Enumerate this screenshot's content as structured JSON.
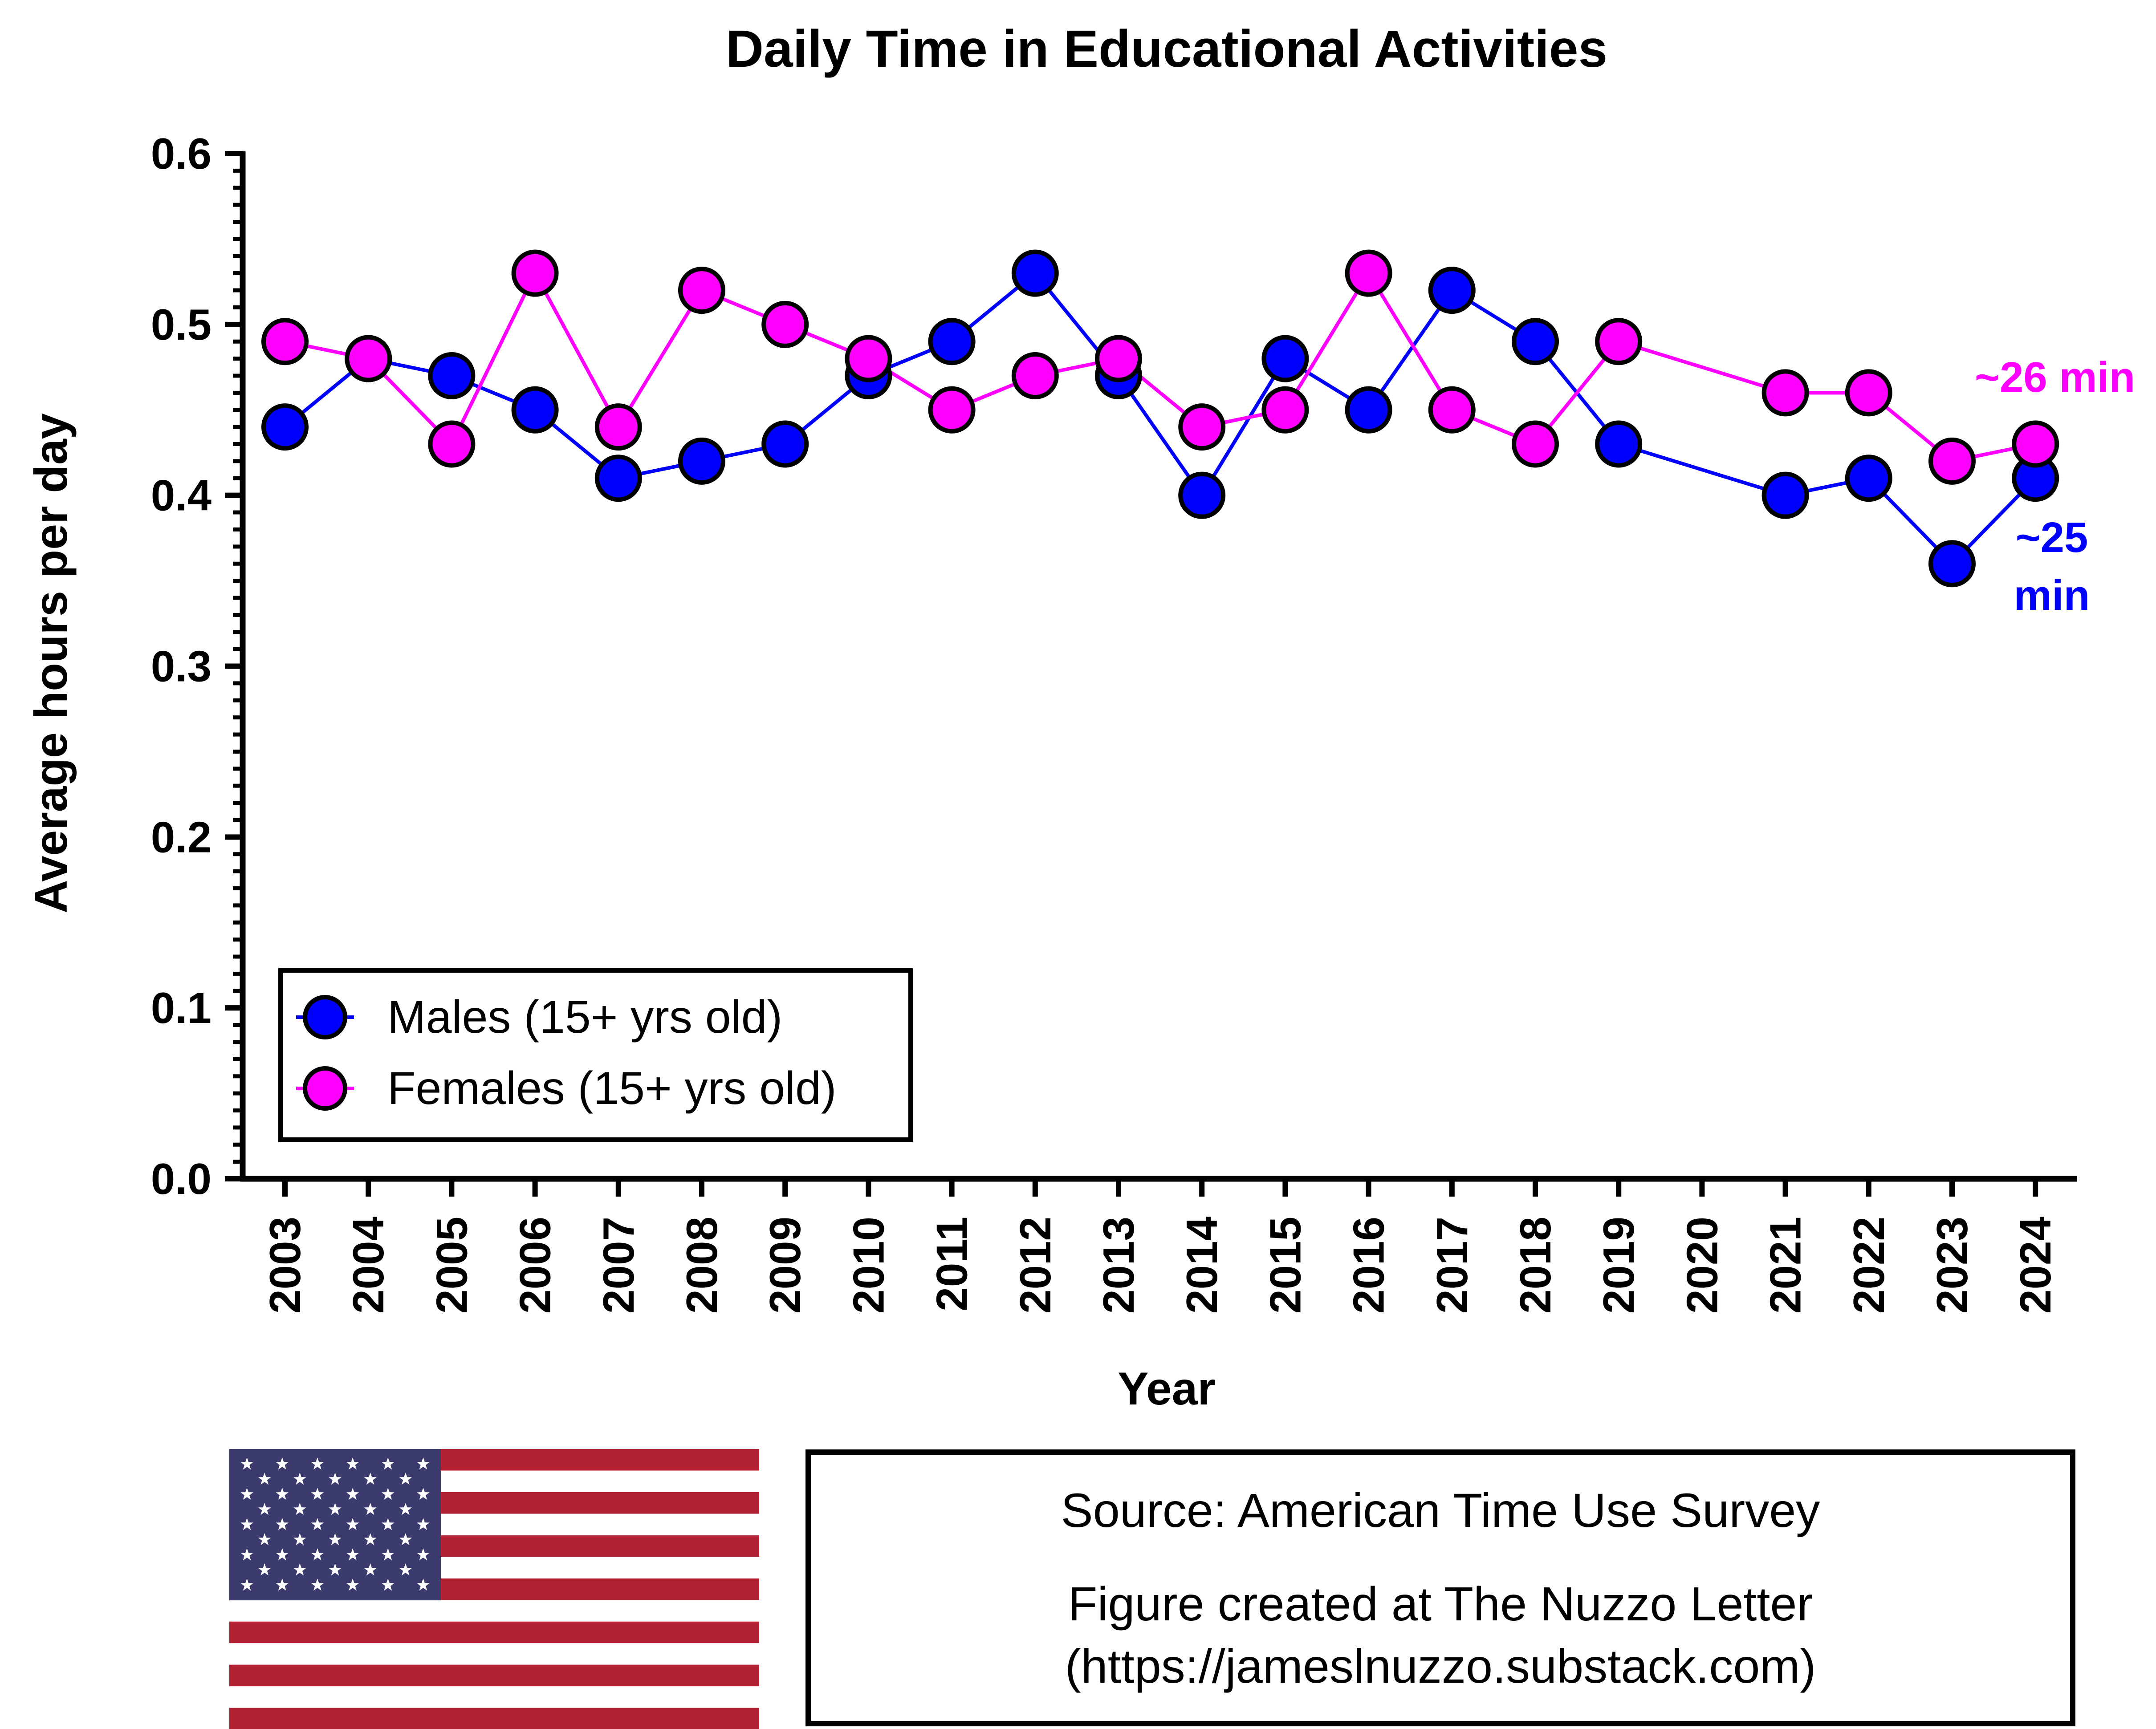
{
  "chart_data": {
    "type": "line",
    "title": "Daily Time in Educational Activities",
    "xlabel": "Year",
    "ylabel": "Average hours per day",
    "ylim": [
      0,
      0.6
    ],
    "yticks": [
      "0.0",
      "0.1",
      "0.2",
      "0.3",
      "0.4",
      "0.5",
      "0.6"
    ],
    "categories": [
      "2003",
      "2004",
      "2005",
      "2006",
      "2007",
      "2008",
      "2009",
      "2010",
      "2011",
      "2012",
      "2013",
      "2014",
      "2015",
      "2016",
      "2017",
      "2018",
      "2019",
      "2020",
      "2021",
      "2022",
      "2023",
      "2024"
    ],
    "series": [
      {
        "name": "Males (15+ yrs old)",
        "color": "#0000ff",
        "values": [
          0.44,
          0.48,
          0.47,
          0.45,
          0.41,
          0.42,
          0.43,
          0.47,
          0.49,
          0.53,
          0.47,
          0.4,
          0.48,
          0.45,
          0.52,
          0.49,
          0.43,
          null,
          0.4,
          0.41,
          0.36,
          0.41
        ]
      },
      {
        "name": "Females (15+ yrs old)",
        "color": "#ff00ff",
        "values": [
          0.49,
          0.48,
          0.43,
          0.53,
          0.44,
          0.52,
          0.5,
          0.48,
          0.45,
          0.47,
          0.48,
          0.44,
          0.45,
          0.53,
          0.45,
          0.43,
          0.49,
          null,
          0.46,
          0.46,
          0.42,
          0.43
        ]
      }
    ],
    "annotations": {
      "females_end": "~26 min",
      "males_end_line1": "~25",
      "males_end_line2": "min"
    },
    "grid": false,
    "legend_position": "bottom-left"
  },
  "footer": {
    "source_line": "Source: American Time Use Survey",
    "credit_line": "Figure created at The Nuzzo Letter",
    "url_line": "(https://jameslnuzzo.substack.com)"
  },
  "flag": {
    "icon": "us-flag-icon",
    "red": "#b22234",
    "blue": "#3c3b6e"
  }
}
